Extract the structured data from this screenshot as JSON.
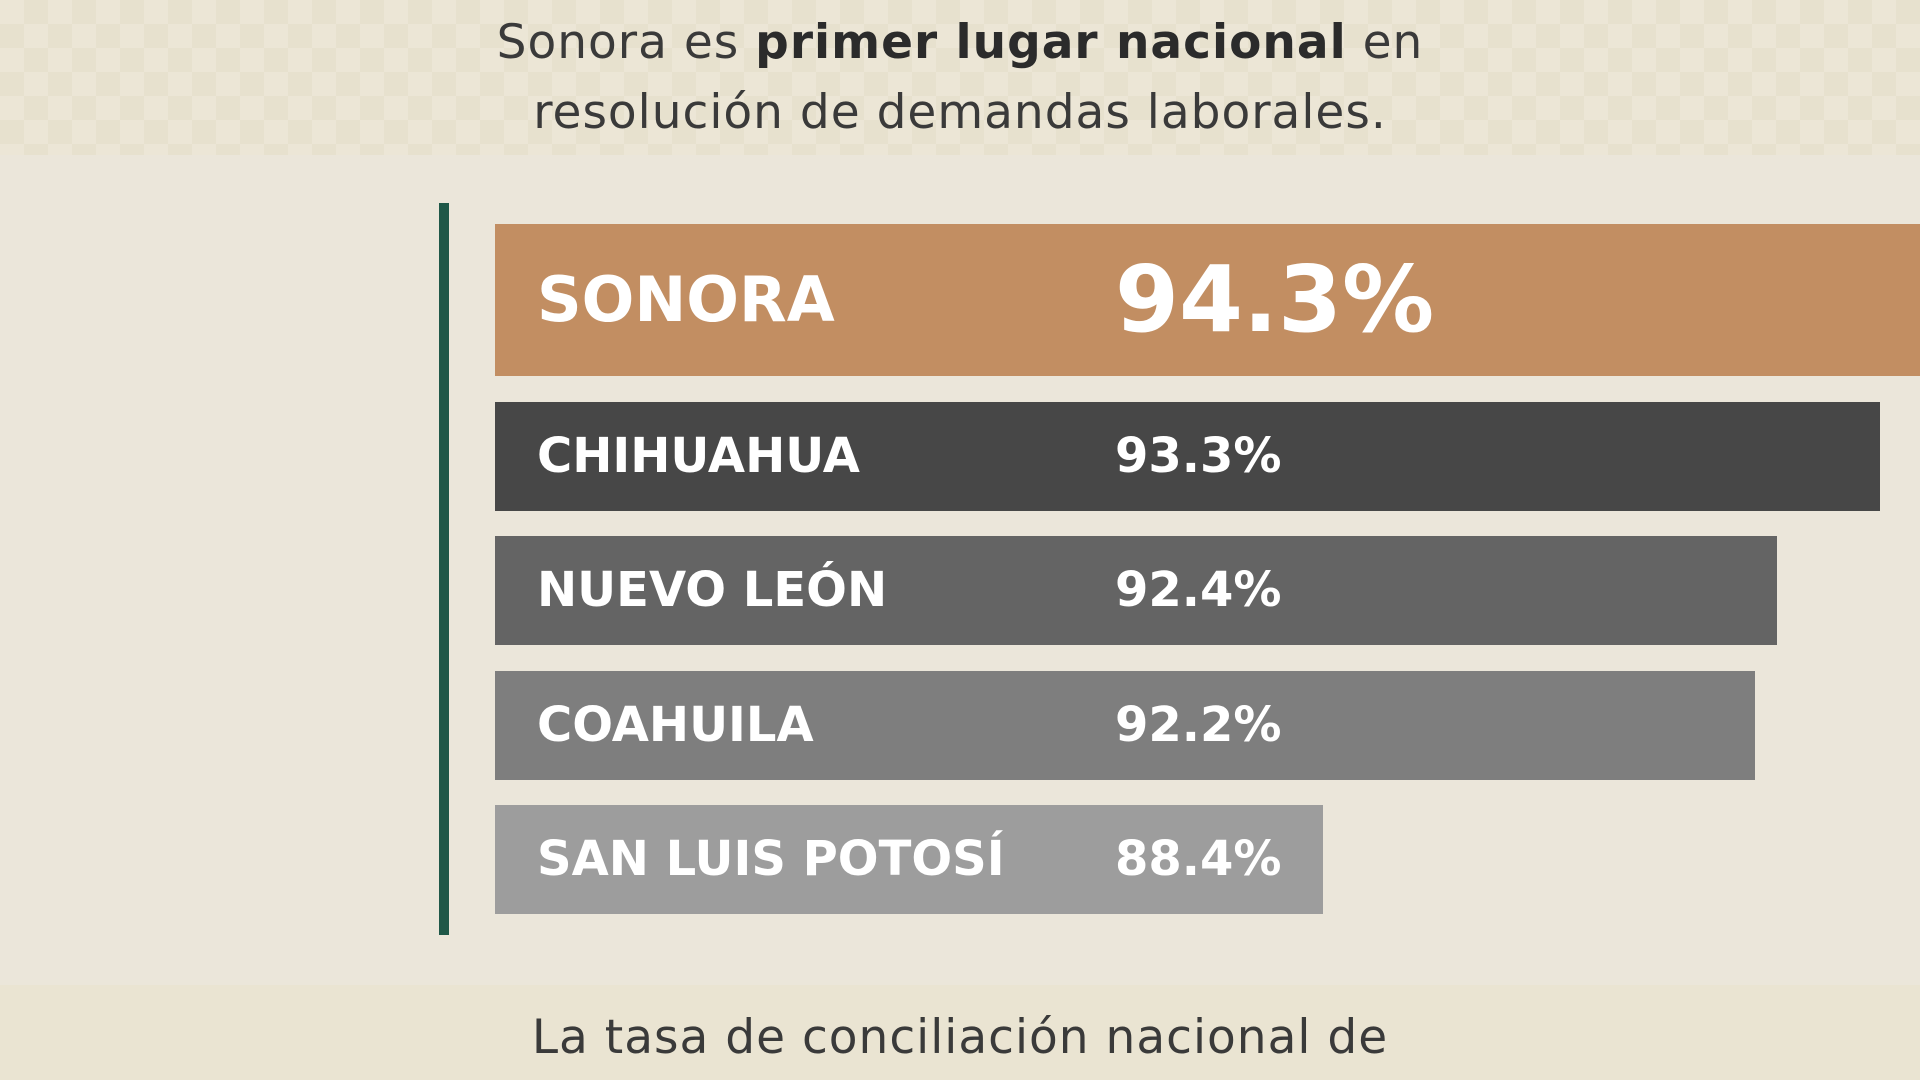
{
  "header": {
    "line1_prefix": "Sonora es ",
    "line1_bold": "primer lugar nacional",
    "line1_suffix": " en",
    "line2": "resolución de demandas laborales."
  },
  "footer": {
    "text": "La tasa de conciliación nacional de"
  },
  "colors": {
    "sonora": "#c28e62",
    "chihuahua": "#474747",
    "nuevo_leon": "#646464",
    "coahuila": "#7e7e7e",
    "san_luis_potosi": "#9d9d9d",
    "axis": "#1f5848"
  },
  "chart_data": {
    "type": "bar",
    "orientation": "horizontal",
    "categories": [
      "SONORA",
      "CHIHUAHUA",
      "NUEVO LEÓN",
      "COAHUILA",
      "SAN LUIS POTOSÍ"
    ],
    "values": [
      94.3,
      93.3,
      92.4,
      92.2,
      88.4
    ],
    "value_labels": [
      "94.3%",
      "93.3%",
      "92.4%",
      "92.2%",
      "88.4%"
    ],
    "highlight": "SONORA"
  }
}
